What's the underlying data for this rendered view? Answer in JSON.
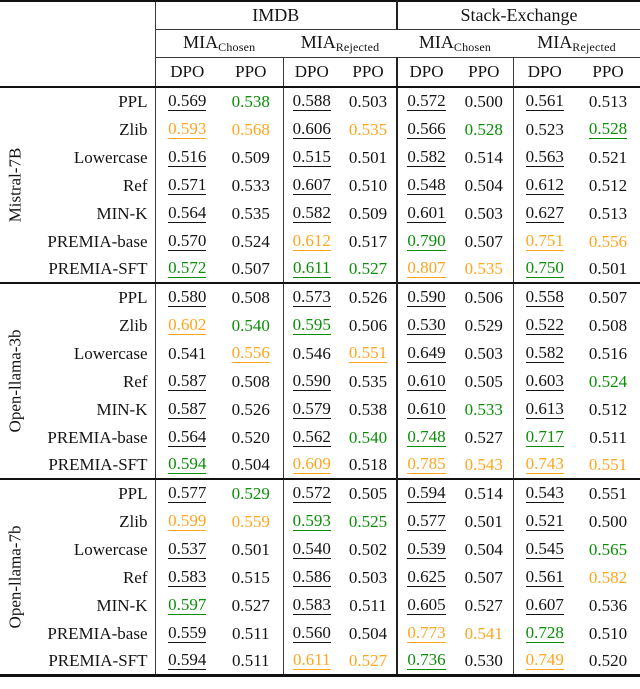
{
  "colors": {
    "black": "#141414",
    "green": "#0a8e08",
    "orange": "#ffa51e"
  },
  "header": {
    "datasets": [
      {
        "label": "IMDB"
      },
      {
        "label": "Stack-Exchange"
      }
    ],
    "mia_groups": [
      {
        "base": "MIA",
        "sub": "Chosen"
      },
      {
        "base": "MIA",
        "sub": "Rejected"
      },
      {
        "base": "MIA",
        "sub": "Chosen"
      },
      {
        "base": "MIA",
        "sub": "Rejected"
      }
    ],
    "method_cols": [
      "DPO",
      "PPO",
      "DPO",
      "PPO",
      "DPO",
      "PPO",
      "DPO",
      "PPO"
    ]
  },
  "groups": [
    {
      "model": "Mistral-7B",
      "rows": [
        {
          "method": "PPL",
          "cells": [
            [
              "0.569",
              "black",
              1
            ],
            [
              "0.538",
              "green",
              0
            ],
            [
              "0.588",
              "black",
              1
            ],
            [
              "0.503",
              "black",
              0
            ],
            [
              "0.572",
              "black",
              1
            ],
            [
              "0.500",
              "black",
              0
            ],
            [
              "0.561",
              "black",
              1
            ],
            [
              "0.513",
              "black",
              0
            ]
          ]
        },
        {
          "method": "Zlib",
          "cells": [
            [
              "0.593",
              "orange",
              1
            ],
            [
              "0.568",
              "orange",
              0
            ],
            [
              "0.606",
              "black",
              1
            ],
            [
              "0.535",
              "orange",
              0
            ],
            [
              "0.566",
              "black",
              1
            ],
            [
              "0.528",
              "green",
              0
            ],
            [
              "0.523",
              "black",
              0
            ],
            [
              "0.528",
              "green",
              1
            ]
          ]
        },
        {
          "method": "Lowercase",
          "cells": [
            [
              "0.516",
              "black",
              1
            ],
            [
              "0.509",
              "black",
              0
            ],
            [
              "0.515",
              "black",
              1
            ],
            [
              "0.501",
              "black",
              0
            ],
            [
              "0.582",
              "black",
              1
            ],
            [
              "0.514",
              "black",
              0
            ],
            [
              "0.563",
              "black",
              1
            ],
            [
              "0.521",
              "black",
              0
            ]
          ]
        },
        {
          "method": "Ref",
          "cells": [
            [
              "0.571",
              "black",
              1
            ],
            [
              "0.533",
              "black",
              0
            ],
            [
              "0.607",
              "black",
              1
            ],
            [
              "0.510",
              "black",
              0
            ],
            [
              "0.548",
              "black",
              1
            ],
            [
              "0.504",
              "black",
              0
            ],
            [
              "0.612",
              "black",
              1
            ],
            [
              "0.512",
              "black",
              0
            ]
          ]
        },
        {
          "method": "MIN-K",
          "cells": [
            [
              "0.564",
              "black",
              1
            ],
            [
              "0.535",
              "black",
              0
            ],
            [
              "0.582",
              "black",
              1
            ],
            [
              "0.509",
              "black",
              0
            ],
            [
              "0.601",
              "black",
              1
            ],
            [
              "0.503",
              "black",
              0
            ],
            [
              "0.627",
              "black",
              1
            ],
            [
              "0.513",
              "black",
              0
            ]
          ]
        },
        {
          "method": "PREMIA-base",
          "cells": [
            [
              "0.570",
              "black",
              1
            ],
            [
              "0.524",
              "black",
              0
            ],
            [
              "0.612",
              "orange",
              1
            ],
            [
              "0.517",
              "black",
              0
            ],
            [
              "0.790",
              "green",
              1
            ],
            [
              "0.507",
              "black",
              0
            ],
            [
              "0.751",
              "orange",
              1
            ],
            [
              "0.556",
              "orange",
              0
            ]
          ]
        },
        {
          "method": "PREMIA-SFT",
          "cells": [
            [
              "0.572",
              "green",
              1
            ],
            [
              "0.507",
              "black",
              0
            ],
            [
              "0.611",
              "green",
              1
            ],
            [
              "0.527",
              "green",
              0
            ],
            [
              "0.807",
              "orange",
              1
            ],
            [
              "0.535",
              "orange",
              0
            ],
            [
              "0.750",
              "green",
              1
            ],
            [
              "0.501",
              "black",
              0
            ]
          ]
        }
      ]
    },
    {
      "model": "Open-llama-3b",
      "rows": [
        {
          "method": "PPL",
          "cells": [
            [
              "0.580",
              "black",
              1
            ],
            [
              "0.508",
              "black",
              0
            ],
            [
              "0.573",
              "black",
              1
            ],
            [
              "0.526",
              "black",
              0
            ],
            [
              "0.590",
              "black",
              1
            ],
            [
              "0.506",
              "black",
              0
            ],
            [
              "0.558",
              "black",
              1
            ],
            [
              "0.507",
              "black",
              0
            ]
          ]
        },
        {
          "method": "Zlib",
          "cells": [
            [
              "0.602",
              "orange",
              1
            ],
            [
              "0.540",
              "green",
              0
            ],
            [
              "0.595",
              "green",
              1
            ],
            [
              "0.506",
              "black",
              0
            ],
            [
              "0.530",
              "black",
              1
            ],
            [
              "0.529",
              "black",
              0
            ],
            [
              "0.522",
              "black",
              1
            ],
            [
              "0.508",
              "black",
              0
            ]
          ]
        },
        {
          "method": "Lowercase",
          "cells": [
            [
              "0.541",
              "black",
              0
            ],
            [
              "0.556",
              "orange",
              1
            ],
            [
              "0.546",
              "black",
              0
            ],
            [
              "0.551",
              "orange",
              1
            ],
            [
              "0.649",
              "black",
              1
            ],
            [
              "0.503",
              "black",
              0
            ],
            [
              "0.582",
              "black",
              1
            ],
            [
              "0.516",
              "black",
              0
            ]
          ]
        },
        {
          "method": "Ref",
          "cells": [
            [
              "0.587",
              "black",
              1
            ],
            [
              "0.508",
              "black",
              0
            ],
            [
              "0.590",
              "black",
              1
            ],
            [
              "0.535",
              "black",
              0
            ],
            [
              "0.610",
              "black",
              1
            ],
            [
              "0.505",
              "black",
              0
            ],
            [
              "0.603",
              "black",
              1
            ],
            [
              "0.524",
              "green",
              0
            ]
          ]
        },
        {
          "method": "MIN-K",
          "cells": [
            [
              "0.587",
              "black",
              1
            ],
            [
              "0.526",
              "black",
              0
            ],
            [
              "0.579",
              "black",
              1
            ],
            [
              "0.538",
              "black",
              0
            ],
            [
              "0.610",
              "black",
              1
            ],
            [
              "0.533",
              "green",
              0
            ],
            [
              "0.613",
              "black",
              1
            ],
            [
              "0.512",
              "black",
              0
            ]
          ]
        },
        {
          "method": "PREMIA-base",
          "cells": [
            [
              "0.564",
              "black",
              1
            ],
            [
              "0.520",
              "black",
              0
            ],
            [
              "0.562",
              "black",
              1
            ],
            [
              "0.540",
              "green",
              0
            ],
            [
              "0.748",
              "green",
              1
            ],
            [
              "0.527",
              "black",
              0
            ],
            [
              "0.717",
              "green",
              1
            ],
            [
              "0.511",
              "black",
              0
            ]
          ]
        },
        {
          "method": "PREMIA-SFT",
          "cells": [
            [
              "0.594",
              "green",
              1
            ],
            [
              "0.504",
              "black",
              0
            ],
            [
              "0.609",
              "orange",
              1
            ],
            [
              "0.518",
              "black",
              0
            ],
            [
              "0.785",
              "orange",
              1
            ],
            [
              "0.543",
              "orange",
              0
            ],
            [
              "0.743",
              "orange",
              1
            ],
            [
              "0.551",
              "orange",
              0
            ]
          ]
        }
      ]
    },
    {
      "model": "Open-llama-7b",
      "rows": [
        {
          "method": "PPL",
          "cells": [
            [
              "0.577",
              "black",
              1
            ],
            [
              "0.529",
              "green",
              0
            ],
            [
              "0.572",
              "black",
              1
            ],
            [
              "0.505",
              "black",
              0
            ],
            [
              "0.594",
              "black",
              1
            ],
            [
              "0.514",
              "black",
              0
            ],
            [
              "0.543",
              "black",
              1
            ],
            [
              "0.551",
              "black",
              0
            ]
          ]
        },
        {
          "method": "Zlib",
          "cells": [
            [
              "0.599",
              "orange",
              1
            ],
            [
              "0.559",
              "orange",
              0
            ],
            [
              "0.593",
              "green",
              1
            ],
            [
              "0.525",
              "green",
              0
            ],
            [
              "0.577",
              "black",
              1
            ],
            [
              "0.501",
              "black",
              0
            ],
            [
              "0.521",
              "black",
              1
            ],
            [
              "0.500",
              "black",
              0
            ]
          ]
        },
        {
          "method": "Lowercase",
          "cells": [
            [
              "0.537",
              "black",
              1
            ],
            [
              "0.501",
              "black",
              0
            ],
            [
              "0.540",
              "black",
              1
            ],
            [
              "0.502",
              "black",
              0
            ],
            [
              "0.539",
              "black",
              1
            ],
            [
              "0.504",
              "black",
              0
            ],
            [
              "0.545",
              "black",
              1
            ],
            [
              "0.565",
              "green",
              0
            ]
          ]
        },
        {
          "method": "Ref",
          "cells": [
            [
              "0.583",
              "black",
              1
            ],
            [
              "0.515",
              "black",
              0
            ],
            [
              "0.586",
              "black",
              1
            ],
            [
              "0.503",
              "black",
              0
            ],
            [
              "0.625",
              "black",
              1
            ],
            [
              "0.507",
              "black",
              0
            ],
            [
              "0.561",
              "black",
              1
            ],
            [
              "0.582",
              "orange",
              0
            ]
          ]
        },
        {
          "method": "MIN-K",
          "cells": [
            [
              "0.597",
              "green",
              1
            ],
            [
              "0.527",
              "black",
              0
            ],
            [
              "0.583",
              "black",
              1
            ],
            [
              "0.511",
              "black",
              0
            ],
            [
              "0.605",
              "black",
              1
            ],
            [
              "0.527",
              "black",
              0
            ],
            [
              "0.607",
              "black",
              1
            ],
            [
              "0.536",
              "black",
              0
            ]
          ]
        },
        {
          "method": "PREMIA-base",
          "cells": [
            [
              "0.559",
              "black",
              1
            ],
            [
              "0.511",
              "black",
              0
            ],
            [
              "0.560",
              "black",
              1
            ],
            [
              "0.504",
              "black",
              0
            ],
            [
              "0.773",
              "orange",
              1
            ],
            [
              "0.541",
              "orange",
              0
            ],
            [
              "0.728",
              "green",
              1
            ],
            [
              "0.510",
              "black",
              0
            ]
          ]
        },
        {
          "method": "PREMIA-SFT",
          "cells": [
            [
              "0.594",
              "black",
              1
            ],
            [
              "0.511",
              "black",
              0
            ],
            [
              "0.611",
              "orange",
              1
            ],
            [
              "0.527",
              "orange",
              0
            ],
            [
              "0.736",
              "green",
              1
            ],
            [
              "0.530",
              "black",
              0
            ],
            [
              "0.749",
              "orange",
              1
            ],
            [
              "0.520",
              "black",
              0
            ]
          ]
        }
      ]
    }
  ]
}
